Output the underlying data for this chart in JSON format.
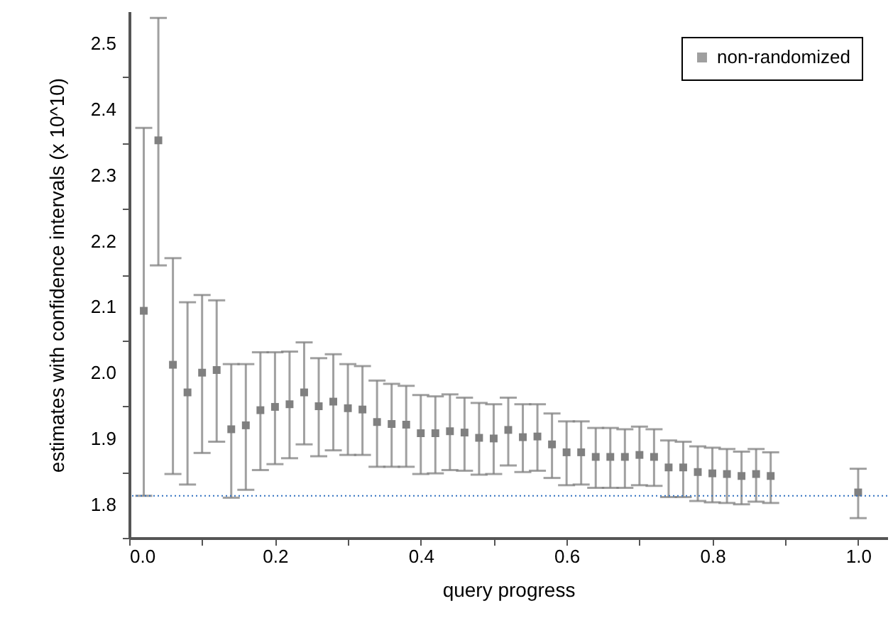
{
  "chart_data": {
    "type": "scatter",
    "xlabel": "query progress",
    "ylabel": "estimates with confidence intervals (x 10^10)",
    "x": [
      0.02,
      0.04,
      0.06,
      0.08,
      0.1,
      0.12,
      0.14,
      0.16,
      0.18,
      0.2,
      0.22,
      0.24,
      0.26,
      0.28,
      0.3,
      0.32,
      0.34,
      0.36,
      0.38,
      0.4,
      0.42,
      0.44,
      0.46,
      0.48,
      0.5,
      0.52,
      0.54,
      0.56,
      0.58,
      0.6,
      0.62,
      0.64,
      0.66,
      0.68,
      0.7,
      0.72,
      0.74,
      0.76,
      0.78,
      0.8,
      0.82,
      0.84,
      0.86,
      0.88,
      1.0
    ],
    "series": [
      {
        "name": "non-randomized",
        "color": "#808080",
        "values": [
          2.095,
          2.354,
          2.013,
          1.971,
          2.001,
          2.005,
          1.915,
          1.921,
          1.944,
          1.949,
          1.953,
          1.971,
          1.95,
          1.957,
          1.947,
          1.945,
          1.926,
          1.923,
          1.922,
          1.909,
          1.909,
          1.912,
          1.91,
          1.902,
          1.901,
          1.914,
          1.903,
          1.904,
          1.892,
          1.88,
          1.88,
          1.873,
          1.873,
          1.873,
          1.876,
          1.873,
          1.857,
          1.857,
          1.85,
          1.848,
          1.847,
          1.844,
          1.847,
          1.844,
          1.819
        ],
        "errors": [
          [
            1.814,
            2.373
          ],
          [
            2.164,
            2.54
          ],
          [
            1.847,
            2.175
          ],
          [
            1.831,
            2.108
          ],
          [
            1.879,
            2.119
          ],
          [
            1.896,
            2.111
          ],
          [
            1.811,
            2.014
          ],
          [
            1.823,
            2.014
          ],
          [
            1.853,
            2.032
          ],
          [
            1.862,
            2.032
          ],
          [
            1.871,
            2.033
          ],
          [
            1.892,
            2.047
          ],
          [
            1.874,
            2.023
          ],
          [
            1.883,
            2.029
          ],
          [
            1.876,
            2.014
          ],
          [
            1.876,
            2.011
          ],
          [
            1.858,
            1.989
          ],
          [
            1.858,
            1.984
          ],
          [
            1.858,
            1.981
          ],
          [
            1.847,
            1.967
          ],
          [
            1.848,
            1.965
          ],
          [
            1.853,
            1.968
          ],
          [
            1.852,
            1.963
          ],
          [
            1.846,
            1.955
          ],
          [
            1.847,
            1.953
          ],
          [
            1.86,
            1.963
          ],
          [
            1.85,
            1.953
          ],
          [
            1.852,
            1.953
          ],
          [
            1.841,
            1.939
          ],
          [
            1.83,
            1.927
          ],
          [
            1.831,
            1.927
          ],
          [
            1.826,
            1.917
          ],
          [
            1.826,
            1.917
          ],
          [
            1.826,
            1.915
          ],
          [
            1.83,
            1.919
          ],
          [
            1.829,
            1.915
          ],
          [
            1.812,
            1.898
          ],
          [
            1.812,
            1.896
          ],
          [
            1.806,
            1.889
          ],
          [
            1.804,
            1.887
          ],
          [
            1.803,
            1.885
          ],
          [
            1.801,
            1.881
          ],
          [
            1.805,
            1.885
          ],
          [
            1.803,
            1.88
          ],
          [
            1.78,
            1.855
          ]
        ]
      }
    ],
    "xlim": [
      0,
      1.04
    ],
    "xticks": [
      {
        "value": 0,
        "label": "0.0"
      },
      {
        "value": 0.1,
        "label": null
      },
      {
        "value": 0.2,
        "label": "0.2"
      },
      {
        "value": 0.3,
        "label": null
      },
      {
        "value": 0.4,
        "label": "0.4"
      },
      {
        "value": 0.5,
        "label": null
      },
      {
        "value": 0.6,
        "label": "0.6"
      },
      {
        "value": 0.7,
        "label": null
      },
      {
        "value": 0.8,
        "label": "0.8"
      },
      {
        "value": 0.9,
        "label": null
      },
      {
        "value": 1.0,
        "label": "1.0"
      }
    ],
    "ylim": [
      1.75,
      2.55
    ],
    "yticks": [
      {
        "value": 1.75,
        "label": null
      },
      1.8,
      {
        "value": 1.85,
        "label": null
      },
      1.9,
      {
        "value": 1.95,
        "label": null
      },
      {
        "value": 2.0,
        "label": "2.0"
      },
      {
        "value": 2.05,
        "label": null
      },
      2.1,
      {
        "value": 2.15,
        "label": null
      },
      2.2,
      {
        "value": 2.25,
        "label": null
      },
      2.3,
      {
        "value": 2.35,
        "label": null
      },
      2.4,
      {
        "value": 2.45,
        "label": null
      },
      2.5
    ],
    "ref_lines": [
      {
        "axis": "y",
        "value": 1.814,
        "color": "#3070c0",
        "line_style": "dotted"
      }
    ],
    "marker": "square",
    "legend": "top right"
  }
}
